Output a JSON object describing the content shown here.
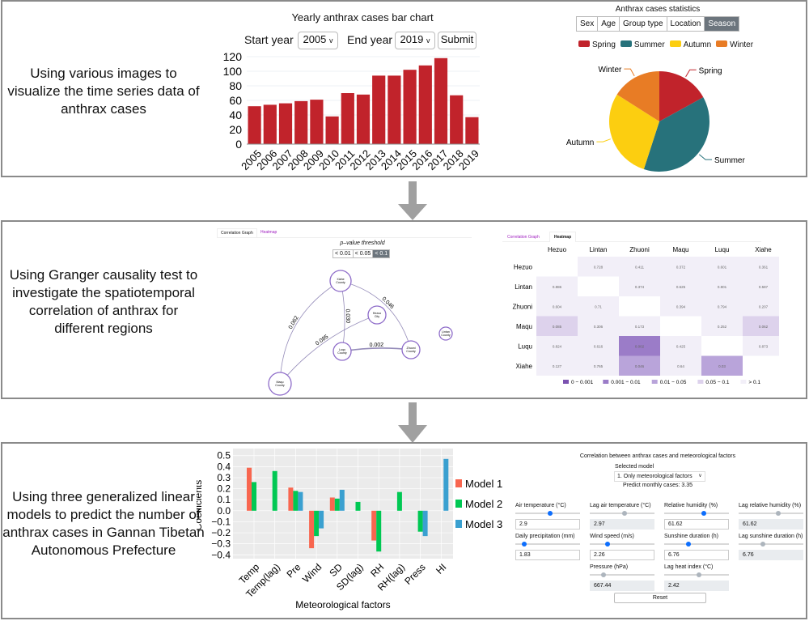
{
  "panels": [
    {
      "description": "Using various images to visualize the time series data of anthrax cases"
    },
    {
      "description": "Using Granger causality test to investigate the spatiotemporal correlation of anthrax for different regions"
    },
    {
      "description": "Using three generalized linear models to predict the number of anthrax cases in Gannan Tibetan Autonomous Prefecture"
    }
  ],
  "bar_controls": {
    "start_label": "Start year",
    "start_value": "2005",
    "end_label": "End year",
    "end_value": "2019",
    "submit_label": "Submit"
  },
  "pie_controls": {
    "tabs": [
      "Sex",
      "Age",
      "Group type",
      "Location",
      "Season"
    ],
    "active_tab": "Season"
  },
  "granger": {
    "tabs": [
      "Correlation Graph",
      "Heatmap"
    ],
    "threshold_label": "p–value threshold",
    "thresholds": [
      "< 0.01",
      "< 0.05",
      "< 0.1"
    ],
    "active_threshold": "< 0.1",
    "nodes": [
      "Xiahe County",
      "Hezuo City",
      "Luqu County",
      "Zhuoni County",
      "Lintan County",
      "Maqu County"
    ],
    "edges": [
      {
        "from": "Maqu County",
        "to": "Xiahe County",
        "p": "0.062"
      },
      {
        "from": "Maqu County",
        "to": "Hezuo City",
        "p": "0.085"
      },
      {
        "from": "Xiahe County",
        "to": "Luqu County",
        "p": "0.030"
      },
      {
        "from": "Xiahe County",
        "to": "Zhuoni County",
        "p": "0.046"
      },
      {
        "from": "Luqu County",
        "to": "Zhuoni County",
        "p": "0.002"
      }
    ],
    "edge_color": "#7a6fa8",
    "node_color": "#8e6cc9"
  },
  "heatmap": {
    "tabs": [
      "Correlation Graph",
      "Heatmap"
    ],
    "regions": [
      "Hezuo",
      "Lintan",
      "Zhuoni",
      "Maqu",
      "Luqu",
      "Xiahe"
    ],
    "matrix": [
      [
        "",
        "0.728",
        "0.411",
        "0.372",
        "0.601",
        "0.361"
      ],
      [
        "0.886",
        "",
        "0.374",
        "0.625",
        "0.801",
        "0.587"
      ],
      [
        "0.604",
        "0.71",
        "",
        "0.394",
        "0.794",
        "0.207"
      ],
      [
        "0.085",
        "0.306",
        "0.173",
        "",
        "0.252",
        "0.062"
      ],
      [
        "0.824",
        "0.616",
        "0.002",
        "0.425",
        "",
        "0.873"
      ],
      [
        "0.127",
        "0.765",
        "0.046",
        "0.64",
        "0.03",
        ""
      ]
    ],
    "legend": [
      {
        "label": "0 − 0.001",
        "color": "#7b52b0"
      },
      {
        "label": "0.001 − 0.01",
        "color": "#9b7cc8"
      },
      {
        "label": "0.01 − 0.05",
        "color": "#b9a4da"
      },
      {
        "label": "0.05 − 0.1",
        "color": "#ddd2ec"
      },
      {
        "label": "> 0.1",
        "color": "#f2eff8"
      }
    ]
  },
  "predictor": {
    "title": "Correlation between anthrax cases and meteorological factors",
    "model_label": "Selected model",
    "model_value": "1. Only meteorological factors",
    "prediction": "Predict monthly cases: 3.35",
    "reset_label": "Reset",
    "fields": [
      {
        "label": "Air temperature (°C)",
        "value": "2.9",
        "level": 0.52,
        "enabled": true
      },
      {
        "label": "Lag air temperature (°C)",
        "value": "2.97",
        "level": 0.53,
        "enabled": false
      },
      {
        "label": "Relative humidity (%)",
        "value": "61.62",
        "level": 0.6,
        "enabled": true
      },
      {
        "label": "Lag relative humidity (%)",
        "value": "61.62",
        "level": 0.6,
        "enabled": false
      },
      {
        "label": "Daily precipitation (mm)",
        "value": "1.83",
        "level": 0.1,
        "enabled": true
      },
      {
        "label": "Wind speed (m/s)",
        "value": "2.26",
        "level": 0.25,
        "enabled": true
      },
      {
        "label": "Sunshine duration (h)",
        "value": "6.76",
        "level": 0.35,
        "enabled": true
      },
      {
        "label": "Lag sunshine duration (h)",
        "value": "6.76",
        "level": 0.35,
        "enabled": false
      },
      {
        "label": "Pressure (hPa)",
        "value": "667.44",
        "level": 0.19,
        "enabled": false
      },
      {
        "label": "Lag heat index (°C)",
        "value": "2.42",
        "level": 0.52,
        "enabled": false
      }
    ]
  },
  "chart_data": [
    {
      "type": "bar",
      "title": "Yearly anthrax cases bar chart",
      "categories": [
        "2005",
        "2006",
        "2007",
        "2008",
        "2009",
        "2010",
        "2011",
        "2012",
        "2013",
        "2014",
        "2015",
        "2016",
        "2017",
        "2018",
        "2019"
      ],
      "values": [
        52,
        54,
        56,
        59,
        61,
        38,
        70,
        68,
        94,
        94,
        102,
        108,
        118,
        67,
        37
      ],
      "yticks": [
        0,
        20,
        40,
        60,
        80,
        100,
        120
      ],
      "ylim": [
        0,
        120
      ],
      "color": "#c1232b",
      "grid": true
    },
    {
      "type": "pie",
      "title": "Anthrax cases statistics",
      "categories": [
        "Spring",
        "Summer",
        "Autumn",
        "Winter"
      ],
      "values": [
        17,
        38,
        29,
        16
      ],
      "colors": [
        "#c1232b",
        "#27727b",
        "#fcce10",
        "#e87c25"
      ],
      "legend": "top"
    },
    {
      "type": "bar",
      "xlabel": "Meteorological factors",
      "ylabel": "Coefficients",
      "categories": [
        "Temp",
        "Temp(lag)",
        "Pre",
        "Wind",
        "SD",
        "SD(lag)",
        "RH",
        "RH(lag)",
        "Press",
        "HI"
      ],
      "series": [
        {
          "name": "Model 1",
          "color": "#f8664f",
          "values": [
            0.39,
            null,
            0.21,
            -0.34,
            0.12,
            null,
            -0.27,
            null,
            null,
            null
          ]
        },
        {
          "name": "Model 2",
          "color": "#00c853",
          "values": [
            0.26,
            0.36,
            0.18,
            -0.23,
            0.11,
            0.08,
            -0.37,
            0.17,
            -0.19,
            null
          ]
        },
        {
          "name": "Model 3",
          "color": "#3aa0d0",
          "values": [
            null,
            null,
            0.17,
            -0.16,
            0.19,
            null,
            null,
            null,
            -0.23,
            0.47
          ]
        }
      ],
      "yticks": [
        "0.5",
        "0.4",
        "0.3",
        "0.2",
        "0.1",
        "0.0",
        "-0.1",
        "-0.2",
        "-0.3",
        "-0.4"
      ],
      "ylim": [
        -0.42,
        0.52
      ],
      "legend": "right",
      "grid": true
    }
  ]
}
